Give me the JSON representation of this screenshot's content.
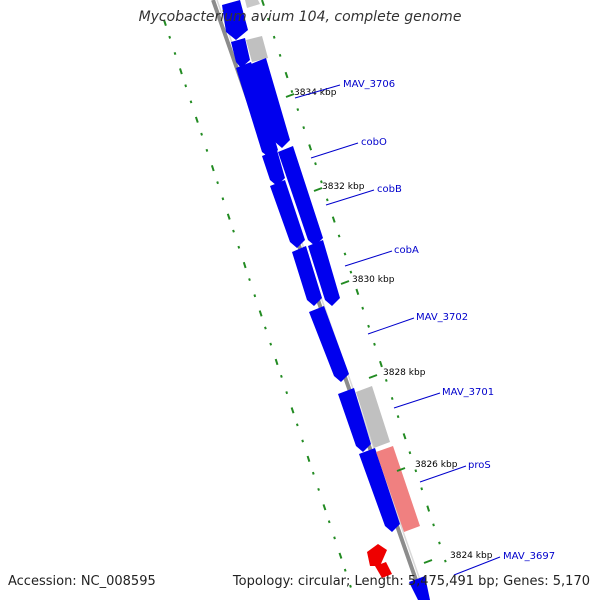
{
  "title": "Mycobacterium avium 104, complete genome",
  "footer": {
    "accession": "Accession: NC_008595",
    "summary": "Topology: circular; Length: 5,475,491 bp; Genes: 5,170"
  },
  "colors": {
    "backbone": "#8c8c8c",
    "gene_forward": "#0000ee",
    "gene_reverse": "#0000ee",
    "gene_gray": "#c8c8c8",
    "gene_pink": "#f08080",
    "gene_red": "#ee0000",
    "gc_ticks": "#228b22",
    "label": "#0000cc"
  },
  "tick_labels": [
    "3834 kbp",
    "3832 kbp",
    "3830 kbp",
    "3828 kbp",
    "3826 kbp",
    "3824 kbp"
  ],
  "gene_labels": [
    "MAV_3706",
    "cobO",
    "cobB",
    "cobA",
    "MAV_3702",
    "MAV_3701",
    "proS",
    "MAV_3697"
  ]
}
